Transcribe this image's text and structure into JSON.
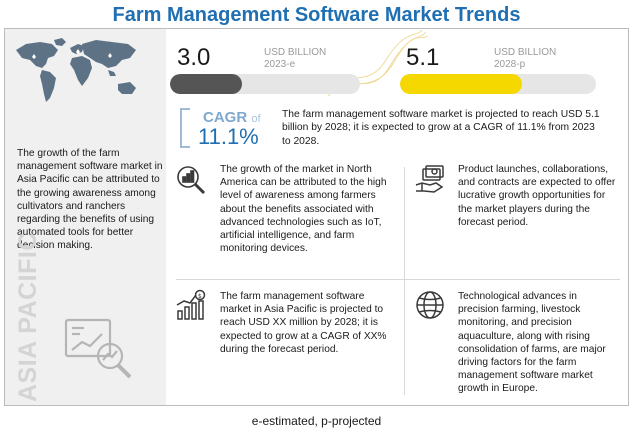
{
  "title": "Farm Management Software Market Trends",
  "market_2023": {
    "value": "3.0",
    "unit": "USD BILLION",
    "year": "2023-e",
    "fill": 0.38,
    "color": "#555555"
  },
  "market_2028": {
    "value": "5.1",
    "unit": "USD BILLION",
    "year": "2028-p",
    "fill": 0.62,
    "color": "#f5d800"
  },
  "cagr": {
    "label": "CAGR",
    "of": "of",
    "value": "11.1%"
  },
  "summary": "The farm management software market is projected to reach USD 5.1 billion by 2028; it is expected to grow at a CAGR of 11.1% from 2023 to 2028.",
  "region": {
    "label": "ASIA PACIFIC",
    "text": "The growth of the farm management software market in Asia Pacific can be attributed to the growing awareness among cultivators and ranchers regarding the benefits of using automated tools for better decision making."
  },
  "cells": [
    {
      "icon": "magnifier-chart-icon",
      "text": "The growth of the market in North America can be attributed to the high level of awareness among farmers about the benefits associated with advanced technologies such as IoT, artificial intelligence, and farm monitoring devices."
    },
    {
      "icon": "money-hand-icon",
      "text": "Product launches, collaborations, and contracts are expected to offer lucrative growth opportunities for the market players during the forecast period."
    },
    {
      "icon": "growth-chart-icon",
      "text": "The farm management software market in Asia Pacific is projected to reach USD XX million by 2028; it is expected to grow at a CAGR of XX% during the forecast period."
    },
    {
      "icon": "globe-icon",
      "text": "Technological advances in precision farming, livestock monitoring, and precision aquaculture, along with rising consolidation of farms, are major driving factors for the farm management software market growth in Europe."
    }
  ],
  "footer": "e-estimated, p-projected",
  "colors": {
    "title": "#1f6fb2",
    "cagr": "#1f6fb2",
    "bar_2023": "#555555",
    "bar_2028": "#f5d800"
  }
}
